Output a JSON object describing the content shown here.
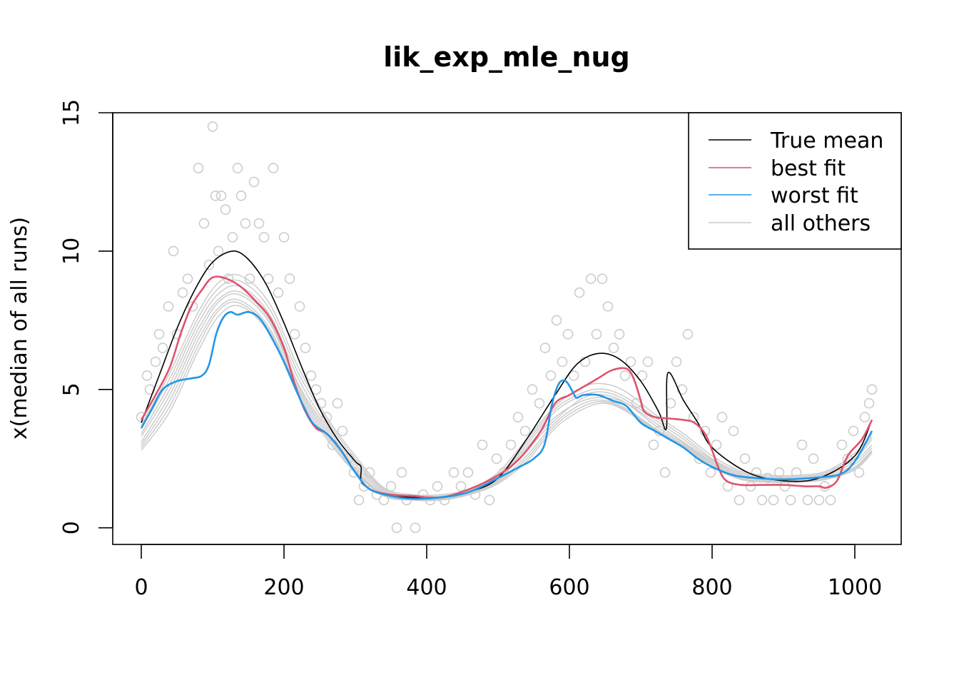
{
  "chart_data": {
    "type": "scatter",
    "title": "lik_exp_mle_nug",
    "xlabel": "",
    "ylabel": "x(median of all runs)",
    "xlim": [
      -40,
      1065
    ],
    "ylim": [
      -0.6,
      15
    ],
    "x_ticks": [
      0,
      200,
      400,
      600,
      800,
      1000
    ],
    "y_ticks": [
      0,
      5,
      10,
      15
    ],
    "x_tick_labels": [
      "0",
      "200",
      "400",
      "600",
      "800",
      "1000"
    ],
    "y_tick_labels": [
      "0",
      "5",
      "10",
      "15"
    ],
    "legend": {
      "position": "top-right",
      "entries": [
        {
          "label": "True mean",
          "color": "#000000"
        },
        {
          "label": "best fit",
          "color": "#DF536B"
        },
        {
          "label": "worst fit",
          "color": "#2297E6"
        },
        {
          "label": "all others",
          "color": "#CCCCCC"
        }
      ]
    },
    "series": [
      {
        "name": "True mean",
        "color": "#000000",
        "x": [
          0,
          25,
          50,
          75,
          100,
          128,
          150,
          175,
          200,
          225,
          250,
          275,
          300,
          308,
          310,
          340,
          380,
          420,
          460,
          500,
          540,
          580,
          610,
          640,
          670,
          700,
          725,
          736,
          738,
          760,
          780,
          800,
          850,
          900,
          950,
          1000,
          1024
        ],
        "y": [
          3.8,
          5.5,
          7.2,
          8.6,
          9.6,
          10.0,
          9.7,
          8.8,
          7.4,
          5.8,
          4.3,
          3.2,
          2.4,
          2.2,
          1.6,
          1.2,
          1.1,
          1.1,
          1.3,
          1.8,
          3.2,
          4.8,
          5.9,
          6.3,
          6.1,
          5.3,
          4.2,
          3.6,
          5.6,
          4.6,
          3.8,
          2.9,
          2.0,
          1.7,
          1.8,
          2.6,
          3.9
        ]
      },
      {
        "name": "best fit",
        "color": "#DF536B",
        "x": [
          0,
          20,
          40,
          55,
          70,
          85,
          100,
          120,
          140,
          160,
          180,
          200,
          215,
          230,
          245,
          260,
          280,
          300,
          320,
          350,
          380,
          420,
          460,
          500,
          530,
          560,
          580,
          600,
          620,
          640,
          660,
          680,
          690,
          700,
          705,
          720,
          740,
          760,
          775,
          790,
          800,
          810,
          820,
          840,
          870,
          900,
          930,
          950,
          960,
          975,
          990,
          1010,
          1024
        ],
        "y": [
          3.9,
          4.8,
          5.8,
          7.0,
          8.0,
          8.6,
          9.05,
          9.0,
          8.7,
          8.2,
          7.6,
          6.5,
          5.2,
          4.2,
          3.6,
          3.4,
          2.8,
          2.0,
          1.4,
          1.2,
          1.15,
          1.1,
          1.4,
          1.9,
          2.5,
          3.5,
          4.5,
          4.8,
          5.1,
          5.4,
          5.7,
          5.75,
          5.4,
          4.6,
          4.2,
          4.0,
          3.95,
          3.9,
          3.8,
          3.4,
          2.8,
          2.1,
          1.7,
          1.55,
          1.55,
          1.55,
          1.5,
          1.5,
          1.45,
          1.7,
          2.6,
          3.2,
          3.9
        ]
      },
      {
        "name": "worst fit",
        "color": "#2297E6",
        "x": [
          0,
          15,
          30,
          50,
          70,
          85,
          95,
          105,
          115,
          125,
          135,
          150,
          165,
          180,
          200,
          220,
          240,
          260,
          280,
          300,
          320,
          350,
          380,
          420,
          460,
          500,
          530,
          550,
          565,
          575,
          585,
          595,
          605,
          610,
          620,
          640,
          660,
          680,
          700,
          720,
          740,
          760,
          780,
          800,
          830,
          860,
          900,
          940,
          960,
          975,
          990,
          1005,
          1024
        ],
        "y": [
          3.6,
          4.3,
          5.0,
          5.3,
          5.4,
          5.5,
          5.9,
          7.0,
          7.6,
          7.8,
          7.7,
          7.8,
          7.6,
          7.0,
          6.0,
          4.8,
          3.8,
          3.4,
          2.8,
          2.0,
          1.4,
          1.15,
          1.05,
          1.1,
          1.3,
          1.8,
          2.2,
          2.5,
          3.0,
          4.4,
          5.2,
          5.3,
          4.9,
          4.7,
          4.8,
          4.8,
          4.6,
          4.4,
          3.8,
          3.5,
          3.2,
          2.9,
          2.5,
          2.2,
          1.9,
          1.8,
          1.75,
          1.8,
          1.85,
          1.9,
          2.1,
          2.6,
          3.5
        ]
      }
    ],
    "other_fits": [
      {
        "name": "other-1",
        "x": [
          0,
          40,
          80,
          110,
          140,
          180,
          220,
          260,
          300,
          340,
          380,
          420,
          460,
          500,
          540,
          580,
          620,
          650,
          680,
          720,
          760,
          800,
          840,
          880,
          920,
          960,
          1000,
          1024
        ],
        "y": [
          3.3,
          5.0,
          7.2,
          8.3,
          8.5,
          7.5,
          5.2,
          3.6,
          2.3,
          1.3,
          1.1,
          1.1,
          1.3,
          1.8,
          2.9,
          4.0,
          4.6,
          4.7,
          4.5,
          3.8,
          3.1,
          2.4,
          1.9,
          1.8,
          1.8,
          1.9,
          2.4,
          3.0
        ]
      },
      {
        "name": "other-2",
        "x": [
          0,
          40,
          80,
          110,
          140,
          180,
          220,
          260,
          300,
          340,
          380,
          420,
          460,
          500,
          540,
          580,
          620,
          650,
          680,
          720,
          760,
          800,
          840,
          880,
          920,
          960,
          1000,
          1024
        ],
        "y": [
          3.0,
          4.6,
          6.8,
          8.0,
          8.2,
          7.2,
          5.0,
          3.4,
          2.1,
          1.2,
          1.05,
          1.05,
          1.25,
          1.7,
          2.6,
          3.8,
          4.5,
          4.6,
          4.3,
          3.6,
          3.0,
          2.3,
          1.8,
          1.7,
          1.7,
          1.8,
          2.2,
          2.8
        ]
      },
      {
        "name": "other-3",
        "x": [
          0,
          40,
          80,
          110,
          140,
          180,
          220,
          260,
          300,
          340,
          380,
          420,
          460,
          500,
          540,
          580,
          620,
          650,
          680,
          720,
          760,
          800,
          840,
          880,
          920,
          960,
          1000,
          1024
        ],
        "y": [
          3.6,
          5.4,
          7.6,
          8.7,
          8.9,
          7.9,
          5.6,
          3.9,
          2.5,
          1.4,
          1.15,
          1.15,
          1.35,
          1.9,
          3.1,
          4.3,
          4.9,
          5.0,
          4.7,
          4.0,
          3.3,
          2.5,
          2.0,
          1.85,
          1.85,
          2.0,
          2.6,
          3.3
        ]
      },
      {
        "name": "other-4",
        "x": [
          0,
          40,
          80,
          110,
          140,
          180,
          220,
          260,
          300,
          340,
          380,
          420,
          460,
          500,
          540,
          580,
          620,
          650,
          680,
          720,
          760,
          800,
          840,
          880,
          920,
          960,
          1000,
          1024
        ],
        "y": [
          2.8,
          4.2,
          6.4,
          7.7,
          8.0,
          7.0,
          4.8,
          3.2,
          2.0,
          1.15,
          1.0,
          1.0,
          1.2,
          1.6,
          2.4,
          3.6,
          4.3,
          4.5,
          4.2,
          3.5,
          2.9,
          2.2,
          1.75,
          1.65,
          1.65,
          1.75,
          2.1,
          2.7
        ]
      },
      {
        "name": "other-5",
        "x": [
          0,
          40,
          80,
          110,
          140,
          180,
          220,
          260,
          300,
          340,
          380,
          420,
          460,
          500,
          540,
          580,
          620,
          650,
          680,
          720,
          760,
          800,
          840,
          880,
          920,
          960,
          1000,
          1024
        ],
        "y": [
          3.4,
          5.2,
          7.4,
          8.5,
          8.7,
          7.7,
          5.4,
          3.7,
          2.4,
          1.35,
          1.1,
          1.1,
          1.3,
          1.85,
          3.0,
          4.2,
          4.8,
          4.9,
          4.6,
          3.9,
          3.2,
          2.45,
          1.95,
          1.8,
          1.8,
          1.95,
          2.5,
          3.2
        ]
      },
      {
        "name": "other-6",
        "x": [
          0,
          40,
          80,
          110,
          140,
          180,
          220,
          260,
          300,
          340,
          380,
          420,
          460,
          500,
          540,
          580,
          620,
          650,
          680,
          720,
          760,
          800,
          840,
          880,
          920,
          960,
          1000,
          1024
        ],
        "y": [
          3.1,
          4.8,
          7.0,
          8.2,
          8.4,
          7.4,
          5.1,
          3.5,
          2.2,
          1.25,
          1.08,
          1.08,
          1.28,
          1.75,
          2.8,
          3.9,
          4.7,
          4.8,
          4.5,
          3.7,
          3.05,
          2.35,
          1.85,
          1.75,
          1.75,
          1.85,
          2.3,
          2.9
        ]
      },
      {
        "name": "other-7",
        "x": [
          0,
          40,
          80,
          110,
          140,
          180,
          220,
          260,
          300,
          340,
          380,
          420,
          460,
          500,
          540,
          580,
          620,
          650,
          680,
          720,
          760,
          800,
          840,
          880,
          920,
          960,
          1000,
          1024
        ],
        "y": [
          3.7,
          5.6,
          7.8,
          8.9,
          9.1,
          8.1,
          5.8,
          4.0,
          2.6,
          1.45,
          1.2,
          1.2,
          1.4,
          2.0,
          3.2,
          4.4,
          5.1,
          5.2,
          4.9,
          4.1,
          3.4,
          2.6,
          2.05,
          1.9,
          1.9,
          2.05,
          2.7,
          3.4
        ]
      },
      {
        "name": "other-8",
        "x": [
          0,
          40,
          80,
          110,
          140,
          180,
          220,
          260,
          300,
          340,
          380,
          420,
          460,
          500,
          540,
          580,
          620,
          650,
          680,
          720,
          760,
          800,
          840,
          880,
          920,
          960,
          1000,
          1024
        ],
        "y": [
          2.9,
          4.4,
          6.6,
          7.9,
          8.1,
          7.1,
          4.9,
          3.3,
          2.05,
          1.18,
          1.02,
          1.02,
          1.22,
          1.65,
          2.5,
          3.7,
          4.4,
          4.55,
          4.25,
          3.55,
          2.95,
          2.25,
          1.78,
          1.68,
          1.68,
          1.78,
          2.15,
          2.75
        ]
      }
    ],
    "points": {
      "name": "observations",
      "color": "#CCCCCC",
      "x": [
        0,
        8,
        12,
        20,
        25,
        30,
        38,
        45,
        50,
        58,
        65,
        72,
        80,
        88,
        95,
        100,
        104,
        108,
        112,
        118,
        122,
        128,
        135,
        140,
        146,
        152,
        158,
        165,
        172,
        178,
        185,
        192,
        200,
        208,
        215,
        222,
        230,
        238,
        245,
        252,
        260,
        268,
        275,
        282,
        290,
        298,
        305,
        312,
        320,
        330,
        340,
        350,
        358,
        365,
        372,
        384,
        395,
        405,
        415,
        425,
        438,
        448,
        458,
        468,
        478,
        488,
        498,
        508,
        518,
        528,
        538,
        548,
        558,
        566,
        574,
        582,
        590,
        598,
        606,
        614,
        622,
        630,
        638,
        646,
        654,
        662,
        670,
        678,
        686,
        694,
        702,
        710,
        718,
        726,
        734,
        742,
        750,
        758,
        766,
        774,
        782,
        790,
        798,
        806,
        814,
        822,
        830,
        838,
        846,
        854,
        862,
        870,
        878,
        886,
        894,
        902,
        910,
        918,
        926,
        934,
        942,
        950,
        958,
        966,
        974,
        982,
        990,
        998,
        1006,
        1014,
        1020,
        1024
      ],
      "y": [
        4.0,
        5.5,
        5.0,
        6.0,
        7.0,
        6.5,
        8.0,
        10.0,
        7.0,
        8.5,
        9.0,
        8.0,
        13.0,
        11.0,
        9.5,
        14.5,
        12.0,
        10.0,
        12.0,
        11.5,
        9.0,
        10.5,
        13.0,
        12.0,
        11.0,
        9.0,
        12.5,
        11.0,
        10.5,
        9.0,
        13.0,
        8.5,
        10.5,
        9.0,
        7.0,
        8.0,
        6.5,
        5.5,
        5.0,
        4.5,
        4.0,
        3.0,
        4.5,
        3.5,
        2.5,
        2.0,
        1.0,
        1.5,
        2.0,
        1.2,
        1.0,
        1.5,
        0.0,
        2.0,
        1.0,
        0.0,
        1.2,
        1.0,
        1.5,
        1.0,
        2.0,
        1.5,
        2.0,
        1.2,
        3.0,
        1.0,
        2.5,
        2.0,
        3.0,
        4.0,
        3.5,
        5.0,
        4.5,
        6.5,
        5.5,
        7.5,
        6.0,
        7.0,
        5.5,
        8.5,
        6.0,
        9.0,
        7.0,
        9.0,
        8.0,
        6.5,
        7.0,
        5.5,
        6.0,
        4.5,
        5.5,
        6.0,
        3.0,
        3.5,
        2.0,
        4.5,
        6.0,
        5.0,
        7.0,
        4.0,
        2.5,
        3.5,
        2.0,
        3.0,
        4.0,
        1.5,
        3.5,
        1.0,
        2.5,
        1.5,
        2.0,
        1.0,
        1.8,
        1.0,
        2.0,
        1.5,
        1.0,
        2.0,
        3.0,
        1.0,
        2.5,
        1.0,
        1.5,
        1.0,
        2.0,
        3.0,
        2.5,
        3.5,
        2.0,
        4.0,
        4.5,
        5.0
      ]
    }
  }
}
